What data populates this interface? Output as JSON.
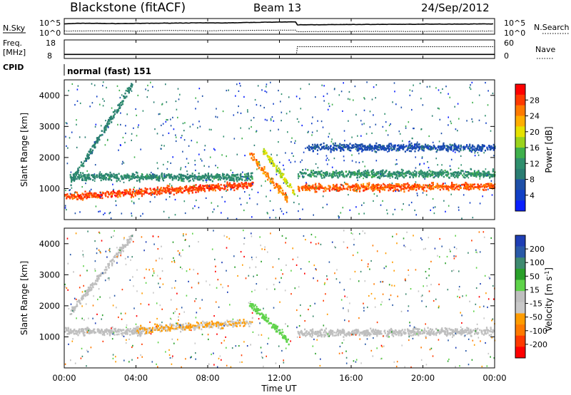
{
  "header": {
    "station": "Blackstone (fitACF)",
    "beam": "Beam 13",
    "date": "24/Sep/2012"
  },
  "strip": {
    "nsky_label": "N.Sky",
    "nsearch_label": "N.Search",
    "noise_ticks": [
      "10^5",
      "10^0"
    ],
    "freq_label": "Freq.",
    "freq_unit": "[MHz]",
    "freq_ticks": [
      "18",
      "8"
    ],
    "nave_label": "Nave",
    "nave_ticks": [
      "60",
      "0"
    ],
    "cpid_label": "CPID",
    "cpid_text": "normal (fast) 151"
  },
  "colorbars": {
    "power": {
      "label": "Power [dB]",
      "ticks": [
        "28",
        "24",
        "20",
        "16",
        "12",
        "8",
        "4"
      ],
      "colors": [
        "#ff0000",
        "#ff3a00",
        "#ff7a00",
        "#ffae00",
        "#e6e200",
        "#9bd31c",
        "#3fb04c",
        "#2f8f6d",
        "#2a7d72",
        "#1f50a8",
        "#1240c6",
        "#0a20ff"
      ]
    },
    "velocity": {
      "label": "Velocity [m s",
      "label_sup": "-1",
      "label_close": "]",
      "ticks": [
        "200",
        "100",
        "50",
        "15",
        "-15",
        "-50",
        "-100",
        "-200"
      ],
      "colors": [
        "#1f3fb5",
        "#2a5aa8",
        "#3e8a70",
        "#2aa02a",
        "#5fd34a",
        "#bfbfbf",
        "#c8c8c8",
        "#ff9c00",
        "#ff7a00",
        "#ff3a00",
        "#ff0000"
      ]
    }
  },
  "axes": {
    "ylabel": "Slant Range [km]",
    "yticks": [
      "4000",
      "3000",
      "2000",
      "1000"
    ],
    "xticks": [
      "00:00",
      "04:00",
      "08:00",
      "12:00",
      "16:00",
      "20:00",
      "00:00"
    ],
    "xlabel": "Time UT"
  },
  "chart_data": [
    {
      "type": "line",
      "title": "N.Sky / N.Search",
      "x_range_hours": [
        0,
        24
      ],
      "series": [
        {
          "name": "N.Sky",
          "x": [
            0,
            1,
            3,
            5,
            7,
            9,
            11,
            12,
            12.9,
            13,
            16,
            20,
            24
          ],
          "y_log10": [
            3.3,
            3.5,
            3.4,
            3.5,
            3.6,
            3.6,
            3.8,
            3.9,
            3.9,
            3.0,
            3.1,
            3.2,
            3.3
          ]
        },
        {
          "name": "N.Search",
          "x": [
            0,
            2,
            4,
            6,
            8,
            10,
            12,
            12.9,
            13,
            16,
            20,
            24
          ],
          "y_log10": [
            1.0,
            1.1,
            1.0,
            1.2,
            1.1,
            1.2,
            1.3,
            1.3,
            0.8,
            0.9,
            0.9,
            1.0
          ]
        }
      ]
    },
    {
      "type": "line",
      "title": "Freq. / Nave",
      "series": [
        {
          "name": "Freq. [MHz]",
          "x": [
            0,
            24
          ],
          "y": [
            10.2,
            10.2
          ]
        },
        {
          "name": "Nave",
          "x": [
            0,
            12.95,
            13.0,
            24
          ],
          "y": [
            13,
            13,
            38,
            38
          ]
        }
      ]
    },
    {
      "type": "heatmap",
      "title": "Power [dB]",
      "x_range_hours": [
        0,
        24
      ],
      "ylim": [
        0,
        4500
      ],
      "clim": [
        0,
        30
      ],
      "features": [
        {
          "desc": "near range echoes",
          "x": [
            0,
            10.5
          ],
          "y_center": [
            750,
            1150
          ],
          "power": 27
        },
        {
          "desc": "band",
          "x": [
            0.3,
            10.5
          ],
          "y_center": [
            1400,
            1400
          ],
          "power": 10
        },
        {
          "desc": "rising streak",
          "x": [
            0.3,
            3.8
          ],
          "y_center": [
            1200,
            4400
          ],
          "power": 9
        },
        {
          "desc": "streak",
          "x": [
            10.3,
            12.4
          ],
          "y_center": [
            2150,
            700
          ],
          "power": 24
        },
        {
          "desc": "streak",
          "x": [
            11.0,
            12.8
          ],
          "y_center": [
            2300,
            900
          ],
          "power": 18
        },
        {
          "desc": "band",
          "x": [
            13.0,
            24
          ],
          "y_center": [
            1050,
            1100
          ],
          "power": 26
        },
        {
          "desc": "band",
          "x": [
            13.0,
            24
          ],
          "y_center": [
            1500,
            1500
          ],
          "power": 11
        },
        {
          "desc": "band",
          "x": [
            13.5,
            24
          ],
          "y_center": [
            2350,
            2350
          ],
          "power": 5
        }
      ]
    },
    {
      "type": "heatmap",
      "title": "Velocity [m s-1]",
      "x_range_hours": [
        0,
        24
      ],
      "ylim": [
        0,
        4500
      ],
      "clim": [
        -200,
        200
      ],
      "features": [
        {
          "desc": "ground scatter",
          "x": [
            0,
            4.5
          ],
          "y_center": [
            1200,
            1200
          ],
          "velocity": 0
        },
        {
          "desc": "ground scatter",
          "x": [
            0.3,
            3.8
          ],
          "y_center": [
            1800,
            4300
          ],
          "velocity": 0
        },
        {
          "desc": "westward flow",
          "x": [
            4.0,
            10.5
          ],
          "y_center": [
            1250,
            1500
          ],
          "velocity": -60
        },
        {
          "desc": "eastward flow",
          "x": [
            10.3,
            12.5
          ],
          "y_center": [
            2100,
            900
          ],
          "velocity": 40
        },
        {
          "desc": "ground scatter",
          "x": [
            13.0,
            24
          ],
          "y_center": [
            1150,
            1200
          ],
          "velocity": 0
        }
      ]
    }
  ]
}
